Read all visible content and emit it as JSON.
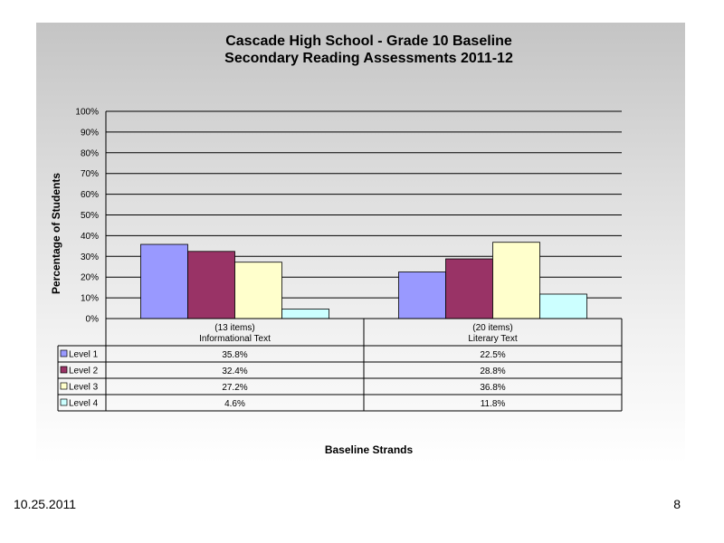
{
  "chart_data": {
    "type": "bar",
    "title": [
      "Cascade High School - Grade 10 Baseline",
      "Secondary Reading Assessments 2011-12"
    ],
    "ylabel": "Percentage of Students",
    "xlabel": "Baseline Strands",
    "ylim": [
      0,
      100
    ],
    "yticks": [
      "0%",
      "10%",
      "20%",
      "30%",
      "40%",
      "50%",
      "60%",
      "70%",
      "80%",
      "90%",
      "100%"
    ],
    "grid": true,
    "categories": [
      [
        "(13 items)",
        "Informational Text"
      ],
      [
        "(20 items)",
        "Literary Text"
      ]
    ],
    "series": [
      {
        "name": "Level 1",
        "values": [
          35.8,
          22.5
        ],
        "labels": [
          "35.8%",
          "22.5%"
        ],
        "color": "#9999ff"
      },
      {
        "name": "Level 2",
        "values": [
          32.4,
          28.8
        ],
        "labels": [
          "32.4%",
          "28.8%"
        ],
        "color": "#993366"
      },
      {
        "name": "Level 3",
        "values": [
          27.2,
          36.8
        ],
        "labels": [
          "27.2%",
          "36.8%"
        ],
        "color": "#ffffcc"
      },
      {
        "name": "Level 4",
        "values": [
          4.6,
          11.8
        ],
        "labels": [
          "4.6%",
          "11.8%"
        ],
        "color": "#ccffff"
      }
    ],
    "legend": "data-table"
  },
  "footer": {
    "date": "10.25.2011",
    "page": "8"
  }
}
